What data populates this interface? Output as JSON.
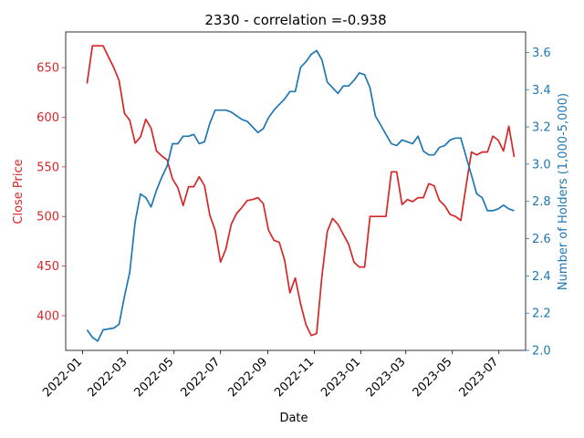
{
  "chart_data": {
    "type": "line",
    "title": "2330 - correlation =-0.938",
    "xlabel": "Date",
    "ylabel_left": "Close Price",
    "ylabel_right": "Number of Holders (1,000-5,000)",
    "colors": {
      "left": "#d62728",
      "right": "#1f77b4"
    },
    "x_range": [
      "2021-12-10",
      "2023-08-05"
    ],
    "x_ticks": [
      "2022-01",
      "2022-03",
      "2022-05",
      "2022-07",
      "2022-09",
      "2022-11",
      "2023-01",
      "2023-03",
      "2023-05",
      "2023-07"
    ],
    "ylim_left": [
      365,
      686
    ],
    "yticks_left": [
      400,
      450,
      500,
      550,
      600,
      650
    ],
    "ylim_right": [
      2.0,
      3.71
    ],
    "yticks_right": [
      2.0,
      2.2,
      2.4,
      2.6,
      2.8,
      3.0,
      3.2,
      3.4,
      3.6
    ],
    "grid": false,
    "series": [
      {
        "name": "Close Price",
        "axis": "left",
        "x": [
          "2022-01-07",
          "2022-01-14",
          "2022-01-21",
          "2022-01-28",
          "2022-02-04",
          "2022-02-11",
          "2022-02-18",
          "2022-02-25",
          "2022-03-04",
          "2022-03-11",
          "2022-03-18",
          "2022-03-25",
          "2022-04-01",
          "2022-04-08",
          "2022-04-15",
          "2022-04-22",
          "2022-04-29",
          "2022-05-06",
          "2022-05-13",
          "2022-05-20",
          "2022-05-27",
          "2022-06-03",
          "2022-06-10",
          "2022-06-17",
          "2022-06-24",
          "2022-07-01",
          "2022-07-08",
          "2022-07-15",
          "2022-07-22",
          "2022-07-29",
          "2022-08-05",
          "2022-08-12",
          "2022-08-19",
          "2022-08-26",
          "2022-09-02",
          "2022-09-09",
          "2022-09-16",
          "2022-09-23",
          "2022-09-30",
          "2022-10-07",
          "2022-10-14",
          "2022-10-21",
          "2022-10-28",
          "2022-11-04",
          "2022-11-11",
          "2022-11-18",
          "2022-11-25",
          "2022-12-02",
          "2022-12-09",
          "2022-12-16",
          "2022-12-23",
          "2022-12-30",
          "2023-01-06",
          "2023-01-13",
          "2023-01-20",
          "2023-01-27",
          "2023-02-03",
          "2023-02-10",
          "2023-02-17",
          "2023-02-24",
          "2023-03-03",
          "2023-03-10",
          "2023-03-17",
          "2023-03-24",
          "2023-03-31",
          "2023-04-07",
          "2023-04-14",
          "2023-04-21",
          "2023-04-28",
          "2023-05-05",
          "2023-05-12",
          "2023-05-19",
          "2023-05-26",
          "2023-06-02",
          "2023-06-09",
          "2023-06-16",
          "2023-06-23",
          "2023-06-30",
          "2023-07-07",
          "2023-07-14",
          "2023-07-21"
        ],
        "values": [
          634,
          672,
          672,
          672,
          661,
          650,
          637,
          604,
          597,
          574,
          580,
          598,
          589,
          566,
          561,
          557,
          538,
          529,
          511,
          530,
          530,
          540,
          531,
          501,
          486,
          454,
          467,
          492,
          503,
          509,
          516,
          517,
          519,
          513,
          486,
          476,
          474,
          456,
          423,
          438,
          412,
          391,
          380,
          382,
          440,
          485,
          498,
          492,
          482,
          472,
          454,
          449,
          449,
          500,
          500,
          500,
          500,
          545,
          545,
          512,
          517,
          515,
          519,
          519,
          533,
          531,
          516,
          511,
          502,
          500,
          496,
          531,
          565,
          562,
          565,
          565,
          581,
          577,
          566,
          591,
          560
        ]
      },
      {
        "name": "Number of Holders (1,000-5,000)",
        "axis": "right",
        "x": [
          "2022-01-07",
          "2022-01-14",
          "2022-01-21",
          "2022-01-28",
          "2022-02-04",
          "2022-02-11",
          "2022-02-18",
          "2022-02-25",
          "2022-03-04",
          "2022-03-11",
          "2022-03-18",
          "2022-03-25",
          "2022-04-01",
          "2022-04-08",
          "2022-04-15",
          "2022-04-22",
          "2022-04-29",
          "2022-05-06",
          "2022-05-13",
          "2022-05-20",
          "2022-05-27",
          "2022-06-03",
          "2022-06-10",
          "2022-06-17",
          "2022-06-24",
          "2022-07-01",
          "2022-07-08",
          "2022-07-15",
          "2022-07-22",
          "2022-07-29",
          "2022-08-05",
          "2022-08-12",
          "2022-08-19",
          "2022-08-26",
          "2022-09-02",
          "2022-09-09",
          "2022-09-16",
          "2022-09-23",
          "2022-09-30",
          "2022-10-07",
          "2022-10-14",
          "2022-10-21",
          "2022-10-28",
          "2022-11-04",
          "2022-11-11",
          "2022-11-18",
          "2022-11-25",
          "2022-12-02",
          "2022-12-09",
          "2022-12-16",
          "2022-12-23",
          "2022-12-30",
          "2023-01-06",
          "2023-01-13",
          "2023-01-20",
          "2023-01-27",
          "2023-02-03",
          "2023-02-10",
          "2023-02-17",
          "2023-02-24",
          "2023-03-03",
          "2023-03-10",
          "2023-03-17",
          "2023-03-24",
          "2023-03-31",
          "2023-04-07",
          "2023-04-14",
          "2023-04-21",
          "2023-04-28",
          "2023-05-05",
          "2023-05-12",
          "2023-05-19",
          "2023-05-26",
          "2023-06-02",
          "2023-06-09",
          "2023-06-16",
          "2023-06-23",
          "2023-06-30",
          "2023-07-07",
          "2023-07-14",
          "2023-07-21"
        ],
        "values": [
          2.11,
          2.07,
          2.05,
          2.11,
          2.115,
          2.12,
          2.14,
          2.29,
          2.42,
          2.69,
          2.84,
          2.82,
          2.77,
          2.86,
          2.93,
          2.99,
          3.11,
          3.11,
          3.15,
          3.15,
          3.16,
          3.11,
          3.12,
          3.22,
          3.29,
          3.29,
          3.29,
          3.28,
          3.26,
          3.24,
          3.23,
          3.2,
          3.17,
          3.19,
          3.25,
          3.29,
          3.32,
          3.35,
          3.39,
          3.39,
          3.52,
          3.55,
          3.59,
          3.61,
          3.56,
          3.44,
          3.41,
          3.38,
          3.42,
          3.42,
          3.45,
          3.49,
          3.48,
          3.41,
          3.26,
          3.21,
          3.16,
          3.11,
          3.1,
          3.13,
          3.12,
          3.11,
          3.15,
          3.07,
          3.05,
          3.05,
          3.09,
          3.1,
          3.13,
          3.14,
          3.14,
          3.04,
          2.94,
          2.84,
          2.82,
          2.75,
          2.75,
          2.76,
          2.78,
          2.76,
          2.75
        ]
      }
    ]
  }
}
